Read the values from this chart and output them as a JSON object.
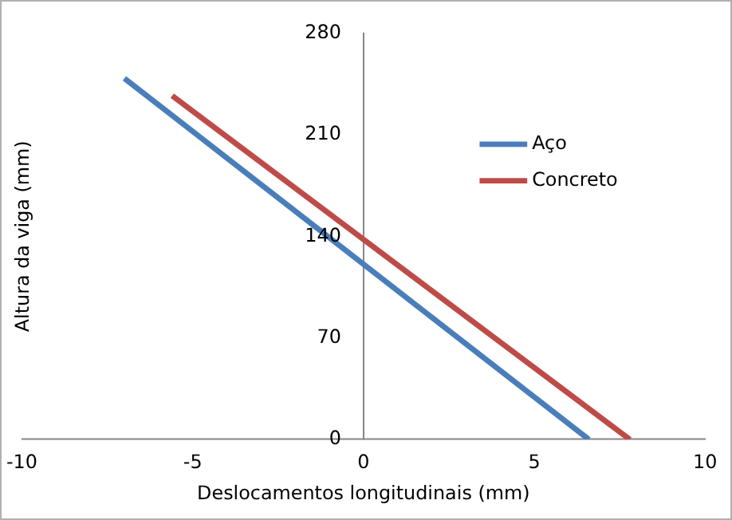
{
  "chart_data": {
    "type": "line",
    "xlabel": "Deslocamentos longitudinais (mm)",
    "ylabel": "Altura da viga (mm)",
    "xlim": [
      -10,
      10
    ],
    "xticks": [
      -10,
      -5,
      0,
      5,
      10
    ],
    "ylim": [
      0,
      280
    ],
    "yticks": [
      0,
      70,
      140,
      210,
      280
    ],
    "grid": false,
    "legend": "top right",
    "marker": "none",
    "series": [
      {
        "name": "Aço",
        "color": "#4a7ebb",
        "x": [
          -7.0,
          6.6
        ],
        "values": [
          249,
          0
        ]
      },
      {
        "name": "Concreto",
        "color": "#be4b48",
        "x": [
          -5.6,
          7.8
        ],
        "values": [
          237,
          0
        ]
      }
    ]
  }
}
